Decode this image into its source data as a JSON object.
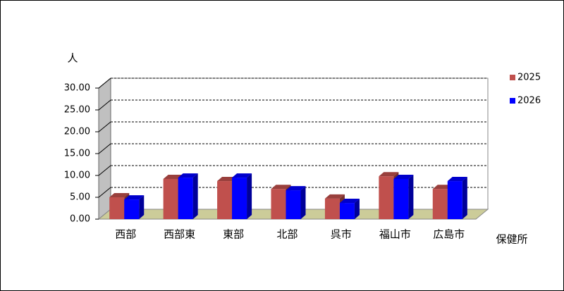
{
  "chart_data": {
    "type": "bar3d",
    "y_label": "人",
    "x_label": "保健所",
    "categories": [
      "西部",
      "西部東",
      "東部",
      "北部",
      "呉市",
      "福山市",
      "広島市"
    ],
    "series": [
      {
        "name": "2025",
        "color": "#c0504d",
        "values": [
          5.0,
          9.2,
          8.7,
          6.9,
          4.7,
          9.8,
          6.9
        ]
      },
      {
        "name": "2026",
        "color": "#0000ff",
        "values": [
          4.5,
          9.5,
          9.5,
          6.6,
          3.7,
          9.2,
          8.7
        ]
      }
    ],
    "ylim": [
      0,
      30
    ],
    "yticks": [
      {
        "value": 0,
        "label": "0.00"
      },
      {
        "value": 5,
        "label": "5.00"
      },
      {
        "value": 10,
        "label": "10.00"
      },
      {
        "value": 15,
        "label": "15.00"
      },
      {
        "value": 20,
        "label": "20.00"
      },
      {
        "value": 25,
        "label": "25.00"
      },
      {
        "value": 30,
        "label": "30.00"
      }
    ],
    "grid": true
  }
}
